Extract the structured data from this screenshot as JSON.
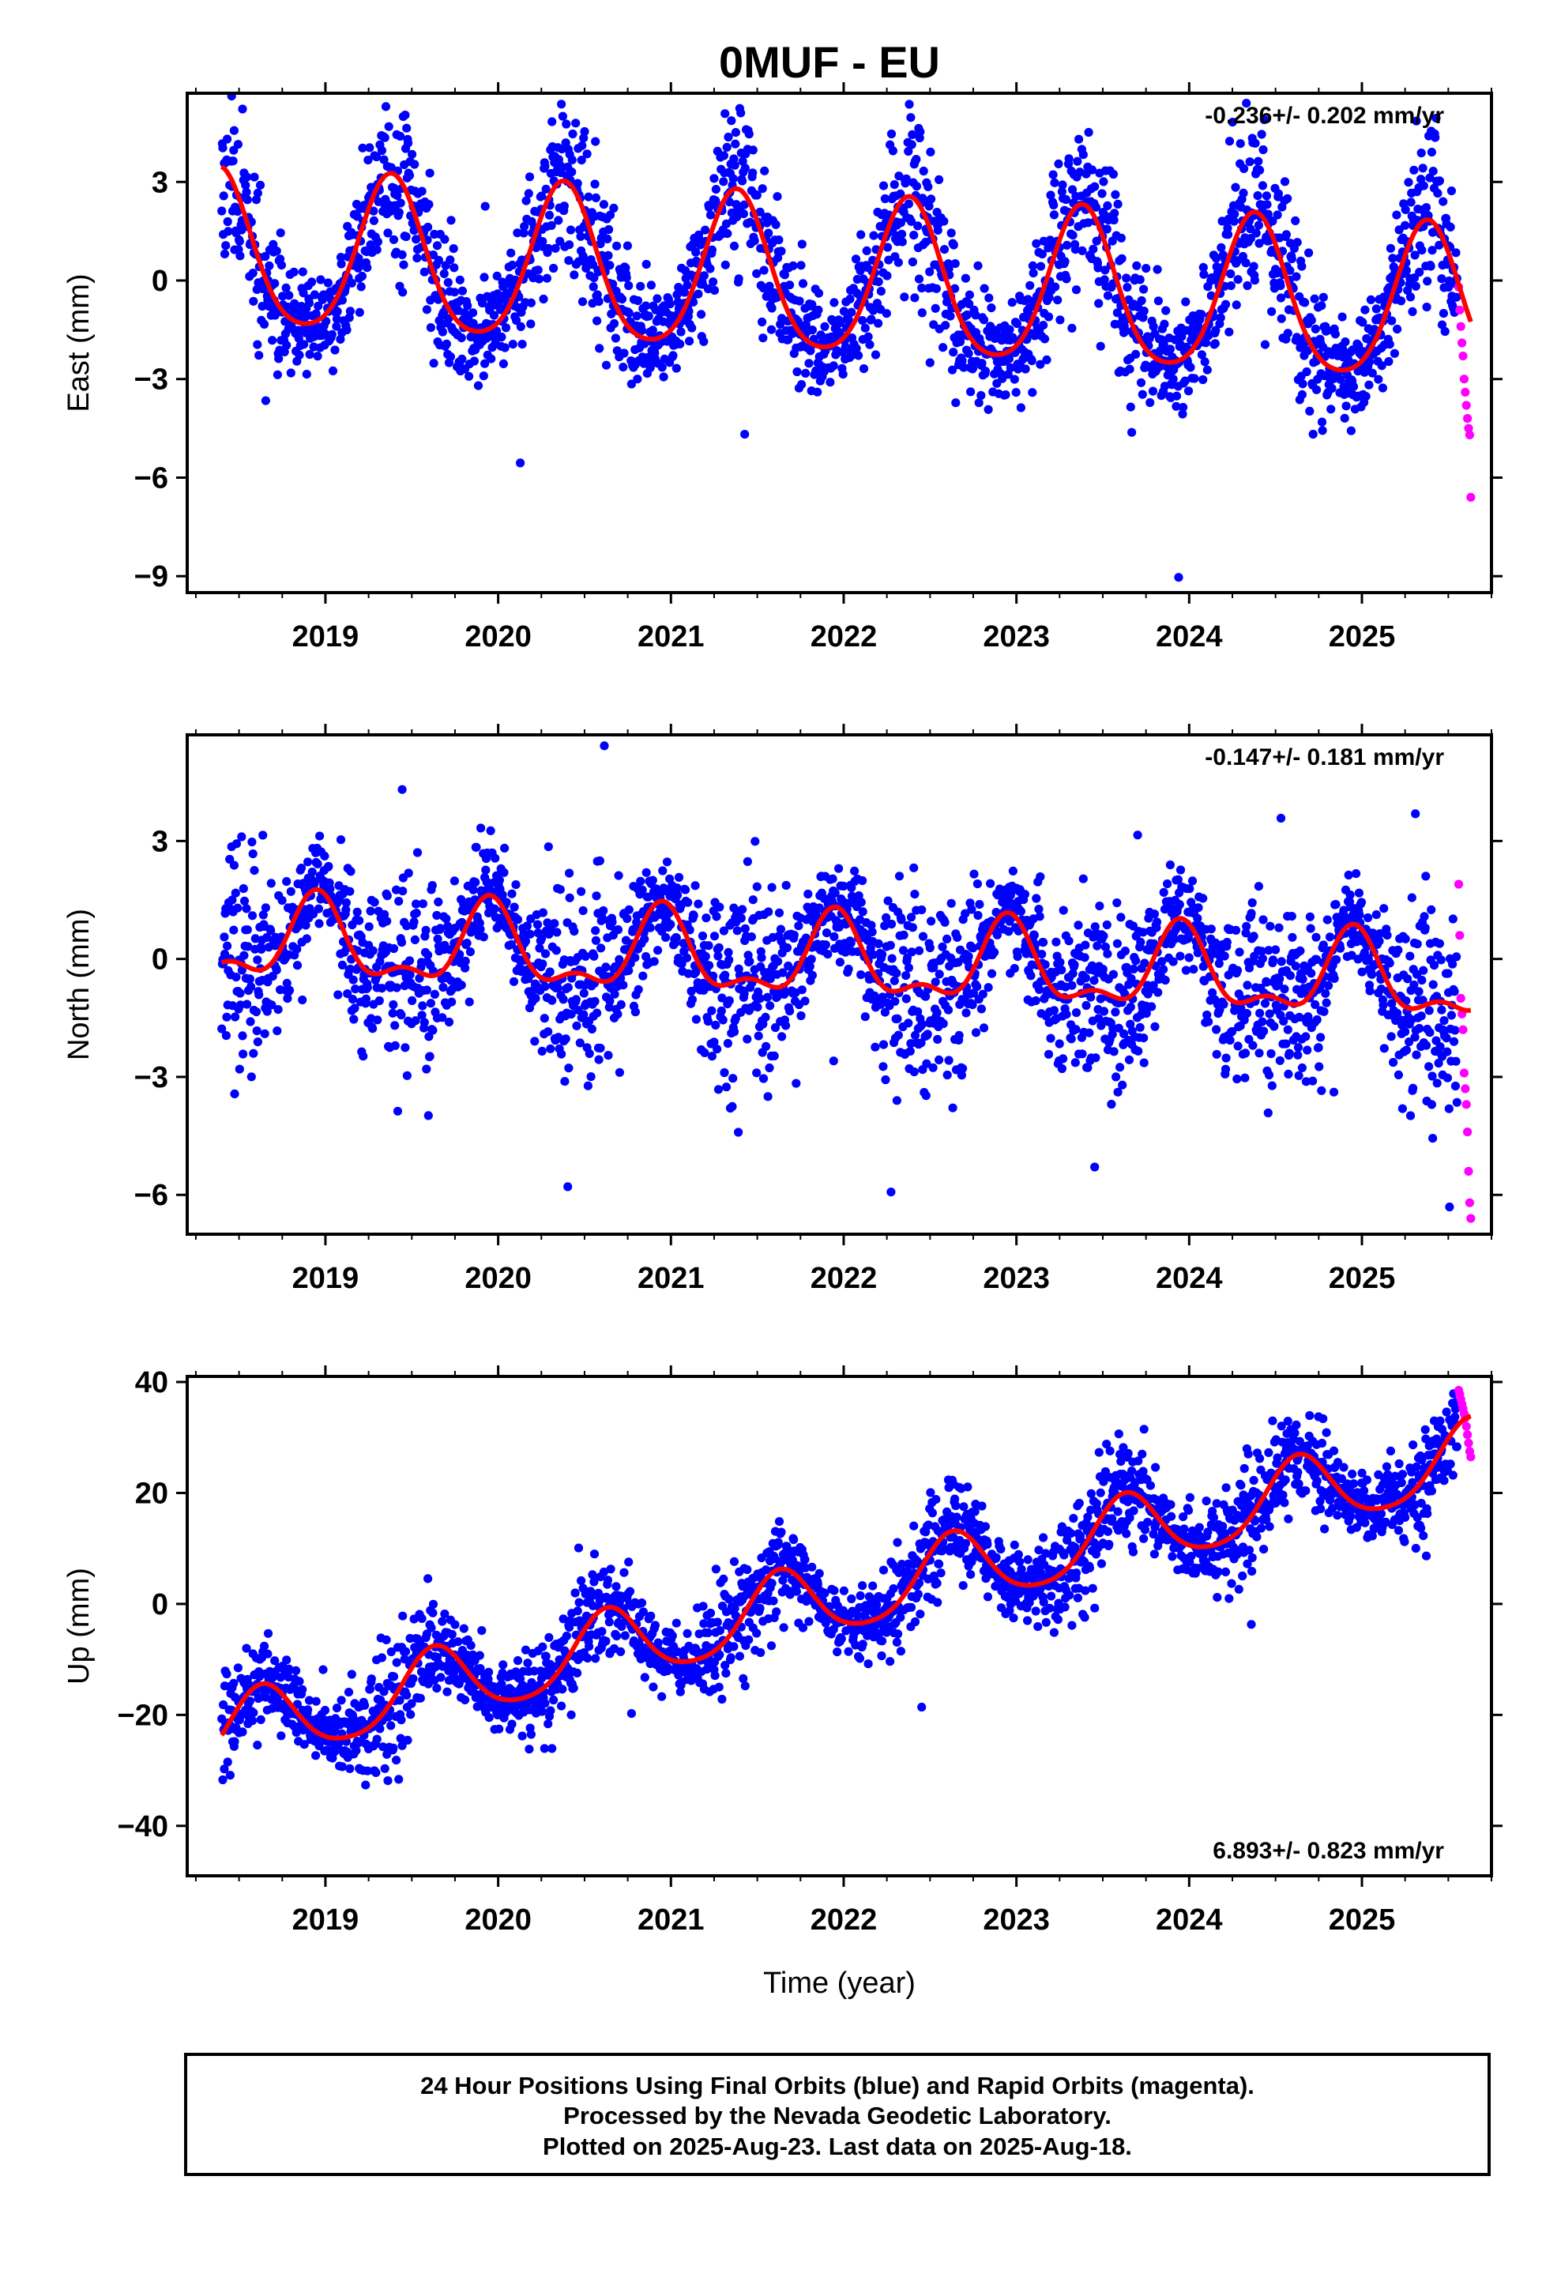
{
  "title": "0MUF - EU",
  "colors": {
    "final": "#0000ff",
    "rapid": "#ff00ff",
    "model": "#ff0000",
    "frame": "#000000"
  },
  "footer": {
    "line1": "24 Hour Positions Using Final Orbits (blue) and Rapid Orbits (magenta).",
    "line2": "Processed by the Nevada Geodetic Laboratory.",
    "line3": "Plotted on 2025-Aug-23. Last data on 2025-Aug-18."
  },
  "chart_data": [
    {
      "type": "scatter",
      "ylabel": "East (mm)",
      "xlabel": "",
      "xlim": [
        2018.2,
        2025.75
      ],
      "ylim": [
        -9.5,
        5.7
      ],
      "xticks": [
        "2019",
        "2020",
        "2021",
        "2022",
        "2023",
        "2024",
        "2025"
      ],
      "yticks": [
        "3",
        "0",
        "-3",
        "-6",
        "-9"
      ],
      "rate_text": "-0.236+/- 0.202 mm/yr",
      "rate_position": "top-right",
      "series": [
        {
          "kind": "final_orbit_points",
          "x_range": [
            2018.4,
            2025.55
          ],
          "n": 2500,
          "seed": 11,
          "trend": -0.236,
          "offset": 0.8,
          "annual_amp": 2.35,
          "annual_phase_peak": 2018.38,
          "semi_amp": 0.35,
          "noise_sd": 1.25
        },
        {
          "kind": "rapid_orbit_points",
          "x_range": [
            2025.56,
            2025.63
          ],
          "values": [
            -0.2,
            -0.9,
            -1.4,
            -1.9,
            -2.3,
            -3.0,
            -3.4,
            -3.8,
            -4.2,
            -4.5,
            -4.7,
            -6.6
          ]
        },
        {
          "kind": "model_curve",
          "x_range": [
            2018.4,
            2025.63
          ]
        }
      ]
    },
    {
      "type": "scatter",
      "ylabel": "North (mm)",
      "xlabel": "",
      "xlim": [
        2018.2,
        2025.75
      ],
      "ylim": [
        -7.0,
        5.7
      ],
      "xticks": [
        "2019",
        "2020",
        "2021",
        "2022",
        "2023",
        "2024",
        "2025"
      ],
      "yticks": [
        "3",
        "0",
        "-3",
        "-6"
      ],
      "rate_text": "-0.147+/- 0.181 mm/yr",
      "rate_position": "top-right",
      "series": [
        {
          "kind": "final_orbit_points",
          "x_range": [
            2018.4,
            2025.55
          ],
          "n": 2500,
          "seed": 23,
          "trend": -0.147,
          "offset": 0.45,
          "annual_amp": 0.95,
          "annual_phase_peak": 2018.95,
          "semi_amp": 0.45,
          "noise_sd": 1.15
        },
        {
          "kind": "rapid_orbit_points",
          "x_range": [
            2025.56,
            2025.63
          ],
          "values": [
            1.9,
            0.6,
            -1.0,
            -1.4,
            -1.8,
            -2.9,
            -3.3,
            -3.7,
            -4.4,
            -5.4,
            -6.2,
            -6.6
          ]
        },
        {
          "kind": "model_curve",
          "x_range": [
            2018.4,
            2025.63
          ]
        }
      ]
    },
    {
      "type": "scatter",
      "ylabel": "Up (mm)",
      "xlabel": "Time (year)",
      "xlim": [
        2018.2,
        2025.75
      ],
      "ylim": [
        -49,
        41
      ],
      "xticks": [
        "2019",
        "2020",
        "2021",
        "2022",
        "2023",
        "2024",
        "2025"
      ],
      "yticks": [
        "40",
        "20",
        "0",
        "-20",
        "-40"
      ],
      "rate_text": "6.893+/- 0.823 mm/yr",
      "rate_position": "bottom-right",
      "series": [
        {
          "kind": "final_orbit_points",
          "x_range": [
            2018.4,
            2025.55
          ],
          "n": 2500,
          "seed": 37,
          "trend": 6.893,
          "offset": -23.5,
          "annual_amp": 6.5,
          "annual_phase_peak": 2018.63,
          "semi_amp": 1.0,
          "noise_sd": 4.8
        },
        {
          "kind": "rapid_orbit_points",
          "x_range": [
            2025.56,
            2025.63
          ],
          "values": [
            38.5,
            37.8,
            36.9,
            36.0,
            35.2,
            34.3,
            33.5,
            32.0,
            30.5,
            29.0,
            27.5,
            26.5
          ]
        },
        {
          "kind": "model_curve",
          "x_range": [
            2018.4,
            2025.63
          ]
        }
      ]
    }
  ]
}
